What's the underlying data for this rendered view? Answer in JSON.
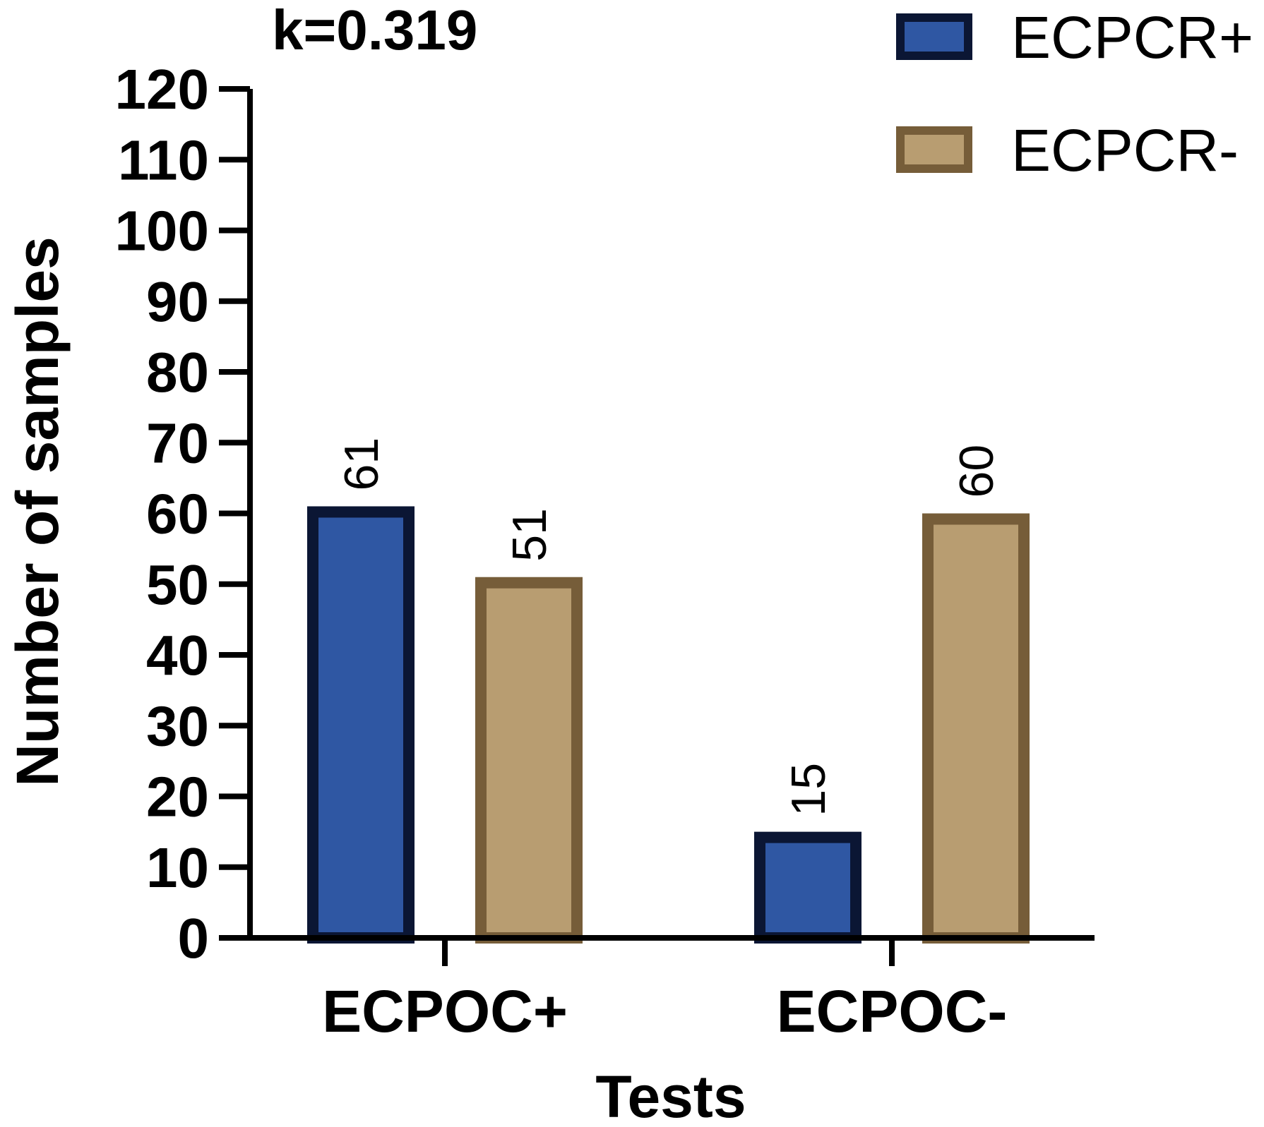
{
  "chart_data": {
    "type": "bar",
    "annotation": "k=0.319",
    "xlabel": "Tests",
    "ylabel": "Number of samples",
    "categories": [
      "ECPOC+",
      "ECPOC-"
    ],
    "series": [
      {
        "name": "ECPCR+",
        "values": [
          61,
          15
        ],
        "fill": "#2f57a3",
        "stroke": "#0b1634"
      },
      {
        "name": "ECPCR-",
        "values": [
          51,
          60
        ],
        "fill": "#b89d71",
        "stroke": "#765d39"
      }
    ],
    "ylim": [
      0,
      120
    ],
    "yticks": [
      0,
      10,
      20,
      30,
      40,
      50,
      60,
      70,
      80,
      90,
      100,
      110,
      120
    ],
    "legend_position": "top-right",
    "grid": false
  }
}
